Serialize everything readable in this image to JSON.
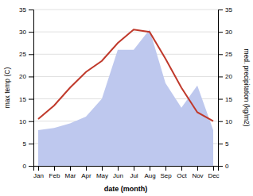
{
  "chart_data": {
    "type": "line",
    "xlabel": "date (month)",
    "ylabel": "max temp (C)",
    "y2label": "med. precipitation (kg/m2)",
    "categories": [
      "Jan",
      "Feb",
      "Mar",
      "Apr",
      "May",
      "Jun",
      "Jul",
      "Aug",
      "Sep",
      "Oct",
      "Nov",
      "Dec"
    ],
    "series": [
      {
        "type": "line",
        "color": "#c0392b",
        "values": [
          10.5,
          13.5,
          17.5,
          21.0,
          23.5,
          27.5,
          30.5,
          30.0,
          24.0,
          17.5,
          12.0,
          10.0
        ]
      },
      {
        "type": "area",
        "axis": "y2",
        "color": "#bec8ee",
        "values": [
          8.0,
          8.5,
          9.5,
          11.0,
          15.0,
          26.0,
          26.0,
          30.5,
          18.5,
          13.0,
          18.0,
          8.0
        ]
      }
    ],
    "ylim": [
      0,
      35
    ],
    "yticks": [
      0,
      5,
      10,
      15,
      20,
      25,
      30,
      35
    ],
    "y2lim": [
      0,
      35
    ],
    "y2ticks": [
      0,
      5,
      10,
      15,
      20,
      25,
      30,
      35
    ],
    "grid": true
  }
}
